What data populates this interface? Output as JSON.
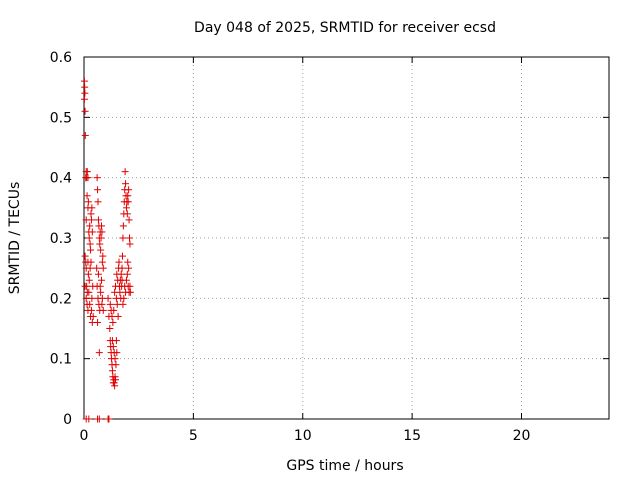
{
  "chart_data": {
    "type": "scatter",
    "title": "Day 048 of 2025, SRMTID for receiver ecsd",
    "xlabel": "GPS time / hours",
    "ylabel": "SRMTID / TECUs",
    "xlim": [
      0,
      24
    ],
    "ylim": [
      0,
      0.6
    ],
    "xticks": [
      0,
      5,
      10,
      15,
      20
    ],
    "yticks": [
      0,
      0.1,
      0.2,
      0.3,
      0.4,
      0.5,
      0.6
    ],
    "xtick_labels": [
      "0",
      "5",
      "10",
      "15",
      "20"
    ],
    "ytick_labels": [
      "0",
      "0.1",
      "0.2",
      "0.3",
      "0.4",
      "0.5",
      "0.6"
    ],
    "grid": true,
    "marker": "+",
    "color": "#e00000",
    "series": [
      {
        "name": "SRMTID",
        "points": [
          [
            0.02,
            0.56
          ],
          [
            0.03,
            0.55
          ],
          [
            0.04,
            0.54
          ],
          [
            0.05,
            0.51
          ],
          [
            0.06,
            0.47
          ],
          [
            0.02,
            0.53
          ],
          [
            0.08,
            0.4
          ],
          [
            0.1,
            0.41
          ],
          [
            0.12,
            0.4
          ],
          [
            0.15,
            0.41
          ],
          [
            0.18,
            0.4
          ],
          [
            0.1,
            0.33
          ],
          [
            0.14,
            0.37
          ],
          [
            0.18,
            0.35
          ],
          [
            0.2,
            0.36
          ],
          [
            0.22,
            0.31
          ],
          [
            0.24,
            0.3
          ],
          [
            0.26,
            0.32
          ],
          [
            0.28,
            0.29
          ],
          [
            0.3,
            0.28
          ],
          [
            0.32,
            0.34
          ],
          [
            0.34,
            0.33
          ],
          [
            0.36,
            0.35
          ],
          [
            0.38,
            0.31
          ],
          [
            0.05,
            0.27
          ],
          [
            0.08,
            0.26
          ],
          [
            0.1,
            0.25
          ],
          [
            0.12,
            0.22
          ],
          [
            0.15,
            0.21
          ],
          [
            0.18,
            0.26
          ],
          [
            0.2,
            0.24
          ],
          [
            0.24,
            0.23
          ],
          [
            0.28,
            0.25
          ],
          [
            0.32,
            0.26
          ],
          [
            0.36,
            0.2
          ],
          [
            0.4,
            0.22
          ],
          [
            0.05,
            0.22
          ],
          [
            0.1,
            0.2
          ],
          [
            0.14,
            0.19
          ],
          [
            0.18,
            0.18
          ],
          [
            0.22,
            0.21
          ],
          [
            0.26,
            0.19
          ],
          [
            0.3,
            0.17
          ],
          [
            0.34,
            0.18
          ],
          [
            0.38,
            0.16
          ],
          [
            0.42,
            0.17
          ],
          [
            0.1,
            0.0
          ],
          [
            0.22,
            0.0
          ],
          [
            0.6,
            0.4
          ],
          [
            0.62,
            0.38
          ],
          [
            0.64,
            0.36
          ],
          [
            0.66,
            0.33
          ],
          [
            0.68,
            0.32
          ],
          [
            0.7,
            0.3
          ],
          [
            0.72,
            0.29
          ],
          [
            0.74,
            0.31
          ],
          [
            0.76,
            0.28
          ],
          [
            0.78,
            0.3
          ],
          [
            0.8,
            0.32
          ],
          [
            0.82,
            0.31
          ],
          [
            0.84,
            0.26
          ],
          [
            0.86,
            0.27
          ],
          [
            0.88,
            0.25
          ],
          [
            0.6,
            0.22
          ],
          [
            0.64,
            0.2
          ],
          [
            0.68,
            0.19
          ],
          [
            0.72,
            0.18
          ],
          [
            0.76,
            0.21
          ],
          [
            0.8,
            0.23
          ],
          [
            0.84,
            0.2
          ],
          [
            0.88,
            0.18
          ],
          [
            0.62,
            0.16
          ],
          [
            0.7,
            0.11
          ],
          [
            0.58,
            0.25
          ],
          [
            0.66,
            0.24
          ],
          [
            0.74,
            0.22
          ],
          [
            0.82,
            0.19
          ],
          [
            0.62,
            0.0
          ],
          [
            0.7,
            0.0
          ],
          [
            1.1,
            0.0
          ],
          [
            1.14,
            0.0
          ],
          [
            1.1,
            0.2
          ],
          [
            1.14,
            0.17
          ],
          [
            1.18,
            0.15
          ],
          [
            1.2,
            0.13
          ],
          [
            1.22,
            0.12
          ],
          [
            1.24,
            0.11
          ],
          [
            1.26,
            0.1
          ],
          [
            1.28,
            0.09
          ],
          [
            1.3,
            0.08
          ],
          [
            1.32,
            0.07
          ],
          [
            1.34,
            0.06
          ],
          [
            1.36,
            0.065
          ],
          [
            1.38,
            0.06
          ],
          [
            1.4,
            0.055
          ],
          [
            1.42,
            0.07
          ],
          [
            1.44,
            0.065
          ],
          [
            1.3,
            0.13
          ],
          [
            1.34,
            0.12
          ],
          [
            1.38,
            0.11
          ],
          [
            1.42,
            0.1
          ],
          [
            1.46,
            0.09
          ],
          [
            1.5,
            0.11
          ],
          [
            1.48,
            0.13
          ],
          [
            1.2,
            0.19
          ],
          [
            1.24,
            0.18
          ],
          [
            1.28,
            0.17
          ],
          [
            1.32,
            0.16
          ],
          [
            1.36,
            0.18
          ],
          [
            1.4,
            0.21
          ],
          [
            1.44,
            0.22
          ],
          [
            1.48,
            0.2
          ],
          [
            1.52,
            0.19
          ],
          [
            1.56,
            0.17
          ],
          [
            1.5,
            0.24
          ],
          [
            1.54,
            0.23
          ],
          [
            1.58,
            0.25
          ],
          [
            1.6,
            0.26
          ],
          [
            1.62,
            0.22
          ],
          [
            1.64,
            0.21
          ],
          [
            1.66,
            0.23
          ],
          [
            1.68,
            0.2
          ],
          [
            1.7,
            0.24
          ],
          [
            1.72,
            0.22
          ],
          [
            1.74,
            0.25
          ],
          [
            1.76,
            0.27
          ],
          [
            1.78,
            0.3
          ],
          [
            1.8,
            0.32
          ],
          [
            1.82,
            0.34
          ],
          [
            1.84,
            0.36
          ],
          [
            1.86,
            0.38
          ],
          [
            1.88,
            0.41
          ],
          [
            1.9,
            0.39
          ],
          [
            1.92,
            0.37
          ],
          [
            1.94,
            0.35
          ],
          [
            1.96,
            0.36
          ],
          [
            1.98,
            0.34
          ],
          [
            2.0,
            0.37
          ],
          [
            2.02,
            0.36
          ],
          [
            2.04,
            0.38
          ],
          [
            2.06,
            0.33
          ],
          [
            2.08,
            0.3
          ],
          [
            2.1,
            0.29
          ],
          [
            1.86,
            0.22
          ],
          [
            1.9,
            0.21
          ],
          [
            1.94,
            0.23
          ],
          [
            1.98,
            0.24
          ],
          [
            2.02,
            0.22
          ],
          [
            2.06,
            0.21
          ],
          [
            2.1,
            0.22
          ],
          [
            2.12,
            0.21
          ],
          [
            1.82,
            0.2
          ],
          [
            1.78,
            0.19
          ],
          [
            1.74,
            0.23
          ],
          [
            2.0,
            0.26
          ],
          [
            2.04,
            0.25
          ]
        ]
      }
    ]
  }
}
